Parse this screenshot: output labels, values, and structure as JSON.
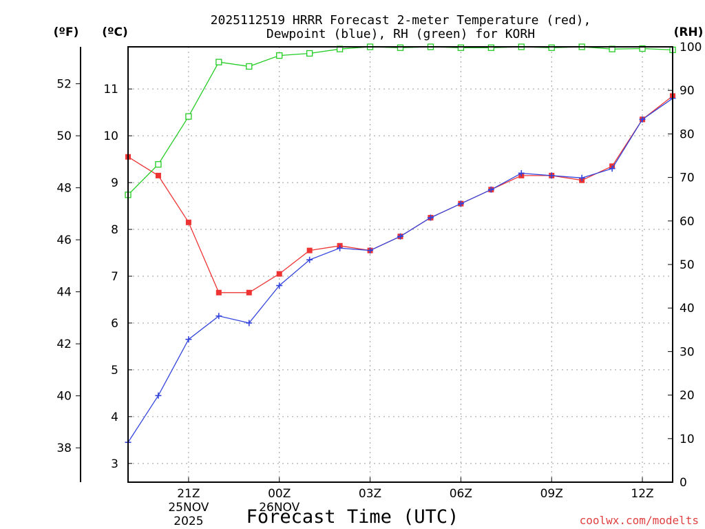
{
  "chart_data": {
    "type": "line",
    "title_line1": "2025112519 HRRR Forecast 2-meter Temperature (red),",
    "title_line2": "Dewpoint (blue), RH (green) for KORH",
    "xlabel": "Forecast Time (UTC)",
    "credit": "coolwx.com/modelts",
    "units": {
      "fahrenheit": "(ºF)",
      "celsius": "(ºC)",
      "rh": "(RH)"
    },
    "x_hours": [
      19,
      20,
      21,
      22,
      23,
      24,
      25,
      26,
      27,
      28,
      29,
      30,
      31,
      32,
      33,
      34,
      35,
      36,
      37
    ],
    "xlim": [
      19,
      37
    ],
    "celsius_ylim": [
      2.6,
      11.9
    ],
    "rh_ylim": [
      0,
      100
    ],
    "x_ticks": [
      {
        "hour": 21,
        "label": "21Z",
        "sub1": "25NOV",
        "sub2": "2025"
      },
      {
        "hour": 24,
        "label": "00Z",
        "sub1": "26NOV",
        "sub2": ""
      },
      {
        "hour": 27,
        "label": "03Z",
        "sub1": "",
        "sub2": ""
      },
      {
        "hour": 30,
        "label": "06Z",
        "sub1": "",
        "sub2": ""
      },
      {
        "hour": 33,
        "label": "09Z",
        "sub1": "",
        "sub2": ""
      },
      {
        "hour": 36,
        "label": "12Z",
        "sub1": "",
        "sub2": ""
      }
    ],
    "celsius_ticks": [
      "3",
      "4",
      "5",
      "6",
      "7",
      "8",
      "9",
      "10",
      "11"
    ],
    "fahrenheit_ticks": [
      "38",
      "40",
      "42",
      "44",
      "46",
      "48",
      "50",
      "52"
    ],
    "rh_ticks": [
      "0",
      "10",
      "20",
      "30",
      "40",
      "50",
      "60",
      "70",
      "80",
      "90",
      "100"
    ],
    "series": [
      {
        "name": "Temperature",
        "unit": "C",
        "color": "#ee3333",
        "marker": "filled-square",
        "values": [
          9.55,
          9.15,
          8.15,
          6.65,
          6.65,
          7.05,
          7.55,
          7.65,
          7.55,
          7.85,
          8.25,
          8.55,
          8.85,
          9.15,
          9.15,
          9.05,
          9.35,
          10.35,
          10.85
        ]
      },
      {
        "name": "Dewpoint",
        "unit": "C",
        "color": "#3344dd",
        "marker": "plus",
        "values": [
          3.45,
          4.45,
          5.65,
          6.15,
          6.0,
          6.8,
          7.35,
          7.6,
          7.55,
          7.85,
          8.25,
          8.55,
          8.85,
          9.2,
          9.15,
          9.1,
          9.3,
          10.35,
          10.8
        ]
      },
      {
        "name": "RH",
        "unit": "%",
        "color": "#22cc22",
        "marker": "open-square",
        "values": [
          66,
          73,
          84,
          96.5,
          95.5,
          98,
          98.5,
          99.5,
          100,
          99.8,
          100,
          99.8,
          99.8,
          100,
          99.8,
          100,
          99.5,
          99.6,
          99.3
        ]
      }
    ]
  }
}
